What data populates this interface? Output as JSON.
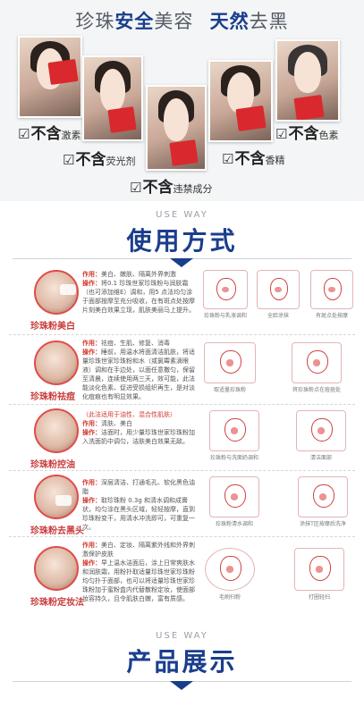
{
  "banner": {
    "headline_a_gray": "珍珠",
    "headline_a_blue": "安全",
    "headline_b_gray": "美容",
    "headline_c_blue": "天然",
    "headline_d_gray": "去黑",
    "labels": [
      {
        "check": "☑",
        "big": "不含",
        "small": "激素"
      },
      {
        "check": "☑",
        "big": "不含",
        "small": "荧光剂"
      },
      {
        "check": "☑",
        "big": "不含",
        "small": "违禁成分"
      },
      {
        "check": "☑",
        "big": "不含",
        "small": "香精"
      },
      {
        "check": "☑",
        "big": "不含",
        "small": "色素"
      }
    ]
  },
  "usage_section": {
    "en": "USE WAY",
    "title": "使用方式"
  },
  "products_section": {
    "en": "USE WAY",
    "title": "产品展示"
  },
  "rows": [
    {
      "name": "珍珠粉美白",
      "effect_key": "作用：",
      "effect": "美白、嫩肤、隔离外界刺激",
      "method_key": "操作：",
      "method": "将0.1 珍珠世家珍珠粉与润肤霜（也可添加维E）调和，用5 点法均匀涂于面部按摩至充分吸收，在有斑点处按摩片刻美白效果立现，肌肤美丽马上提升。",
      "steps": [
        "珍珠粉与乳液调和",
        "全脸涂抹",
        "有斑点处按摩"
      ]
    },
    {
      "name": "珍珠粉祛痘",
      "effect_key": "作用：",
      "effect": "祛痘、生肌、修复、消毒",
      "method_key": "操作：",
      "method": "睡前，用温水将面清洁肌肤，将适量珍珠世家珍珠粉和水（或氯霉素滴眼液）调和在手边处，以面任意撒匀，保留至清晨，连续使用两三天，效可能，此法能淡化色素、促进受损组织再生，是对淡化痘痕也有明显效果。",
      "steps": [
        "取适量珍珠粉",
        "将珍珠粉点在痘痘处"
      ]
    },
    {
      "name": "珍珠粉控油",
      "warn": "（此法适用于油性、混合性肌肤）",
      "effect_key": "作用：",
      "effect": "清肤、美白",
      "method_key": "操作：",
      "method": "洁面时，用少量珍珠世家珍珠粉加入洗面奶中调匀，洁肤美白效果无敌。",
      "steps": [
        "珍珠粉与洗面奶调和",
        "清洁面部"
      ]
    },
    {
      "name": "珍珠粉去黑头",
      "effect_key": "作用：",
      "effect": "深层清洁、打通毛孔、软化黑色油脂",
      "method_key": "操作：",
      "method": "取珍珠粉 0.3g 和清水调和成膏状，均匀涂在黑头区域，轻轻按摩，直到珍珠粉变干，用清水冲洗即可，可重复一次。",
      "steps": [
        "珍珠粉清水调和",
        "涂抹T区按摩后洗净"
      ]
    },
    {
      "name": "珍珠粉定妆法",
      "effect_key": "作用：",
      "effect": "美白、定妆、隔离紫外线和外界刺激保护皮肤",
      "method_key": "操作：",
      "method": "早上温水洁面后，涂上日常爽肤水和润肤霜，用粉扑取适量珍珠世家珍珠粉均匀扑于面部，也可以将适量珍珠世家珍珠粉加于蜜粉盒内代替散粉定妆，使面部妆容持久，且令肌肤白嫩，富有质感。",
      "steps": [
        "毛刷扫粉",
        "打圈轻扫"
      ]
    }
  ]
}
